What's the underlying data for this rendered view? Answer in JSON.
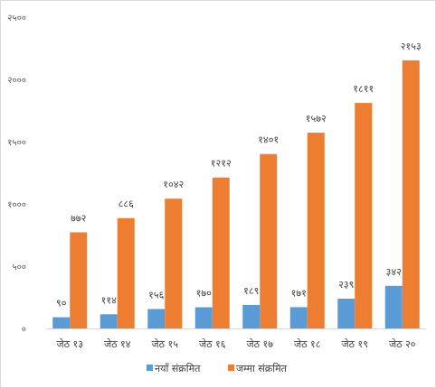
{
  "chart_data": {
    "type": "bar",
    "categories": [
      "जेठ १३",
      "जेठ १४",
      "जेठ १५",
      "जेठ १६",
      "जेठ १७",
      "जेठ १८",
      "जेठ १९",
      "जेठ २०"
    ],
    "series": [
      {
        "name": "नयाँ संक्रमित",
        "values": [
          90,
          114,
          156,
          170,
          189,
          171,
          239,
          342
        ],
        "labels": [
          "९०",
          "११४",
          "१५६",
          "१७०",
          "१८९",
          "१७१",
          "२३९",
          "३४२"
        ],
        "color": "#5b9bd5"
      },
      {
        "name": "जम्मा संक्रमित",
        "values": [
          772,
          886,
          1042,
          1212,
          1401,
          1572,
          1811,
          2153
        ],
        "labels": [
          "७७२",
          "८८६",
          "१०४२",
          "१२१२",
          "१४०१",
          "१५७२",
          "१८११",
          "२१५३"
        ],
        "color": "#ed7d31"
      }
    ],
    "ylim": [
      0,
      2500
    ],
    "yticks": [
      0,
      500,
      1000,
      1500,
      2000,
      2500
    ],
    "ytick_labels": [
      "०",
      "५००",
      "१०००",
      "१५००",
      "२०००",
      "२५००"
    ],
    "grid": false,
    "legend": "bottom"
  }
}
